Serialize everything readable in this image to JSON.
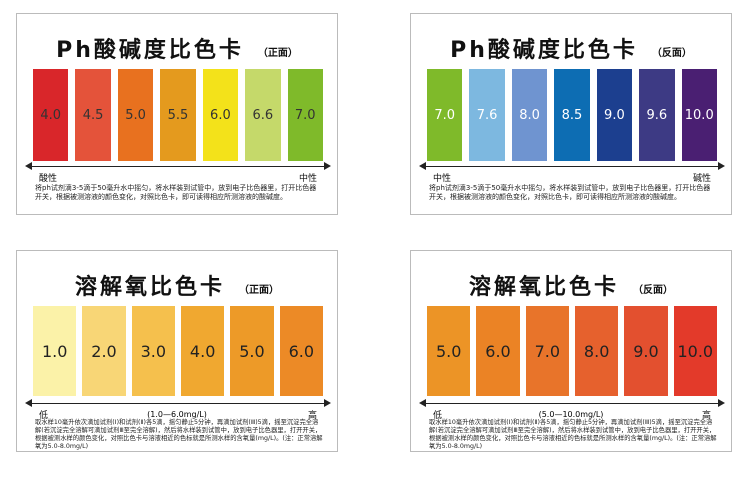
{
  "cards": [
    {
      "title": "Ph酸碱度比色卡",
      "side": "（正面）",
      "text_color": "#333333",
      "swatches": [
        {
          "label": "4.0",
          "color": "#d9262a"
        },
        {
          "label": "4.5",
          "color": "#e4533a"
        },
        {
          "label": "5.0",
          "color": "#e8711f"
        },
        {
          "label": "5.5",
          "color": "#e49a1e"
        },
        {
          "label": "6.0",
          "color": "#f3e21a"
        },
        {
          "label": "6.6",
          "color": "#c5d96a"
        },
        {
          "label": "7.0",
          "color": "#7fba2a"
        }
      ],
      "scale_left": "酸性",
      "scale_right": "中性",
      "instructions": "将ph试剂滴3-5滴于50毫升水中摇匀，将水样装到试管中，放到电子比色器里，打开比色器开关，根据被测溶液的颜色变化，对照比色卡，即可读得相应所测溶液的酸碱度。"
    },
    {
      "title": "Ph酸碱度比色卡",
      "side": "（反面）",
      "text_color": "#ffffff",
      "swatches": [
        {
          "label": "7.0",
          "color": "#7fba2a"
        },
        {
          "label": "7.6",
          "color": "#7db8e0"
        },
        {
          "label": "8.0",
          "color": "#6f94d0"
        },
        {
          "label": "8.5",
          "color": "#0d6db3"
        },
        {
          "label": "9.0",
          "color": "#1c3f8f"
        },
        {
          "label": "9.6",
          "color": "#3d3a84"
        },
        {
          "label": "10.0",
          "color": "#4a1f72"
        }
      ],
      "scale_left": "中性",
      "scale_right": "碱性",
      "instructions": "将ph试剂滴3-5滴于50毫升水中摇匀，将水样装到试管中，放到电子比色器里，打开比色器开关，根据被测溶液的颜色变化，对照比色卡，即可读得相应所测溶液的酸碱度。"
    },
    {
      "title": "溶解氧比色卡",
      "side": "（正面）",
      "text_color": "#222222",
      "swatches": [
        {
          "label": "1.0",
          "color": "#fbf2a8"
        },
        {
          "label": "2.0",
          "color": "#f8d676"
        },
        {
          "label": "3.0",
          "color": "#f5c04d"
        },
        {
          "label": "4.0",
          "color": "#f0a830"
        },
        {
          "label": "5.0",
          "color": "#ed9a28"
        },
        {
          "label": "6.0",
          "color": "#ec8a26"
        }
      ],
      "scale_left": "低",
      "scale_right": "高",
      "range": "(1.0—6.0mg/L)",
      "instructions": "取水样10毫升依次滴加试剂(Ⅰ)和试剂(Ⅱ)各5滴，摇匀静止5分钟，再滴加试剂(Ⅲ)5滴，摇至沉淀完全溶解(若沉淀完全溶解可滴加试剂Ⅲ至完全溶解)，然后将水样装到试管中，放到电子比色器里，打开开关，根据被测水样的颜色变化，对照比色卡与溶液相近的色标就是所测水样的含氧量(mg/L)。(注：正常溶解氧为5.0-8.0mg/L)"
    },
    {
      "title": "溶解氧比色卡",
      "side": "（反面）",
      "text_color": "#222222",
      "swatches": [
        {
          "label": "5.0",
          "color": "#ec9426"
        },
        {
          "label": "6.0",
          "color": "#eb8325"
        },
        {
          "label": "7.0",
          "color": "#e8742a"
        },
        {
          "label": "8.0",
          "color": "#e6612d"
        },
        {
          "label": "9.0",
          "color": "#e3502f"
        },
        {
          "label": "10.0",
          "color": "#e33a2a"
        }
      ],
      "scale_left": "低",
      "scale_right": "高",
      "range": "(5.0—10.0mg/L)",
      "instructions": "取水样10毫升依次滴加试剂(Ⅰ)和试剂(Ⅱ)各5滴，摇匀静止5分钟，再滴加试剂(Ⅲ)5滴，摇至沉淀完全溶解(若沉淀完全溶解可滴加试剂Ⅲ至完全溶解)，然后将水样装到试管中，放到电子比色器里，打开开关，根据被测水样的颜色变化，对照比色卡与溶液相近的色标就是所测水样的含氧量(mg/L)。(注：正常溶解氧为5.0-8.0mg/L)"
    }
  ]
}
